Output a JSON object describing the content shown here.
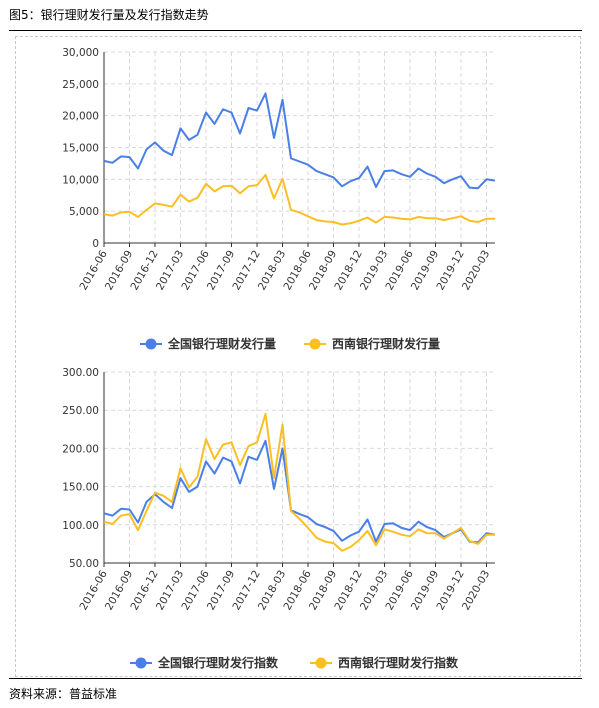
{
  "figure": {
    "title": "图5：银行理财发行量及发行指数走势",
    "source": "资料来源：普益标准"
  },
  "colors": {
    "national": "#4a7fe8",
    "southwest": "#fbbf24",
    "grid": "#d9d9d9",
    "axis": "#333333"
  },
  "chart_data": [
    {
      "type": "line",
      "title": "",
      "xlabel": "",
      "ylabel": "",
      "ylim": [
        0,
        30000
      ],
      "yticks": [
        "0",
        "5,000",
        "10,000",
        "15,000",
        "20,000",
        "25,000",
        "30,000"
      ],
      "ytick_values": [
        0,
        5000,
        10000,
        15000,
        20000,
        25000,
        30000
      ],
      "grid": true,
      "legend_position": "bottom-center",
      "x_tick_labels": [
        "2016-06",
        "2016-09",
        "2016-12",
        "2017-03",
        "2017-06",
        "2017-09",
        "2017-12",
        "2018-03",
        "2018-06",
        "2018-09",
        "2018-12",
        "2019-03",
        "2019-06",
        "2019-09",
        "2019-12",
        "2020-03"
      ],
      "x_tick_every": 3,
      "series": [
        {
          "name": "全国银行理财发行量",
          "values": [
            12900,
            12600,
            13600,
            13500,
            11700,
            14700,
            15800,
            14500,
            13800,
            18000,
            16200,
            17000,
            20500,
            18700,
            21000,
            20500,
            17200,
            21200,
            20800,
            23500,
            16500,
            22500,
            13300,
            12800,
            12300,
            11300,
            10800,
            10300,
            8900,
            9700,
            10200,
            12000,
            8800,
            11300,
            11400,
            10800,
            10400,
            11700,
            10900,
            10400,
            9400,
            10000,
            10500,
            8700,
            8600,
            10000,
            9800
          ]
        },
        {
          "name": "西南银行理财发行量",
          "values": [
            4500,
            4300,
            4800,
            4900,
            4100,
            5200,
            6200,
            6000,
            5700,
            7600,
            6500,
            7100,
            9300,
            8100,
            8900,
            9000,
            7800,
            8900,
            9100,
            10700,
            7000,
            10100,
            5200,
            4800,
            4200,
            3600,
            3400,
            3300,
            2900,
            3100,
            3500,
            4000,
            3200,
            4100,
            4000,
            3800,
            3700,
            4100,
            3900,
            3900,
            3600,
            3900,
            4200,
            3500,
            3300,
            3800,
            3800
          ]
        }
      ]
    },
    {
      "type": "line",
      "title": "",
      "xlabel": "",
      "ylabel": "",
      "ylim": [
        50,
        300
      ],
      "yticks": [
        "50.00",
        "100.00",
        "150.00",
        "200.00",
        "250.00",
        "300.00"
      ],
      "ytick_values": [
        50,
        100,
        150,
        200,
        250,
        300
      ],
      "grid": true,
      "legend_position": "bottom-center",
      "x_tick_labels": [
        "2016-06",
        "2016-09",
        "2016-12",
        "2017-03",
        "2017-06",
        "2017-09",
        "2017-12",
        "2018-03",
        "2018-06",
        "2018-09",
        "2018-12",
        "2019-03",
        "2019-06",
        "2019-09",
        "2019-12",
        "2020-03"
      ],
      "x_tick_every": 3,
      "series": [
        {
          "name": "全国银行理财发行指数",
          "values": [
            115,
            112,
            121,
            120,
            103,
            130,
            140,
            130,
            122,
            161,
            143,
            150,
            183,
            167,
            188,
            183,
            154,
            189,
            185,
            210,
            147,
            200,
            119,
            114,
            110,
            101,
            97,
            92,
            79,
            86,
            91,
            107,
            78,
            101,
            102,
            96,
            93,
            104,
            97,
            93,
            84,
            89,
            94,
            78,
            77,
            89,
            87
          ]
        },
        {
          "name": "西南银行理财发行指数",
          "values": [
            104,
            101,
            112,
            114,
            93,
            118,
            142,
            138,
            130,
            174,
            149,
            163,
            212,
            186,
            205,
            208,
            178,
            203,
            208,
            245,
            161,
            231,
            118,
            108,
            96,
            83,
            78,
            76,
            66,
            71,
            80,
            92,
            73,
            94,
            91,
            87,
            85,
            94,
            89,
            89,
            82,
            89,
            96,
            79,
            75,
            87,
            87
          ]
        }
      ]
    }
  ]
}
